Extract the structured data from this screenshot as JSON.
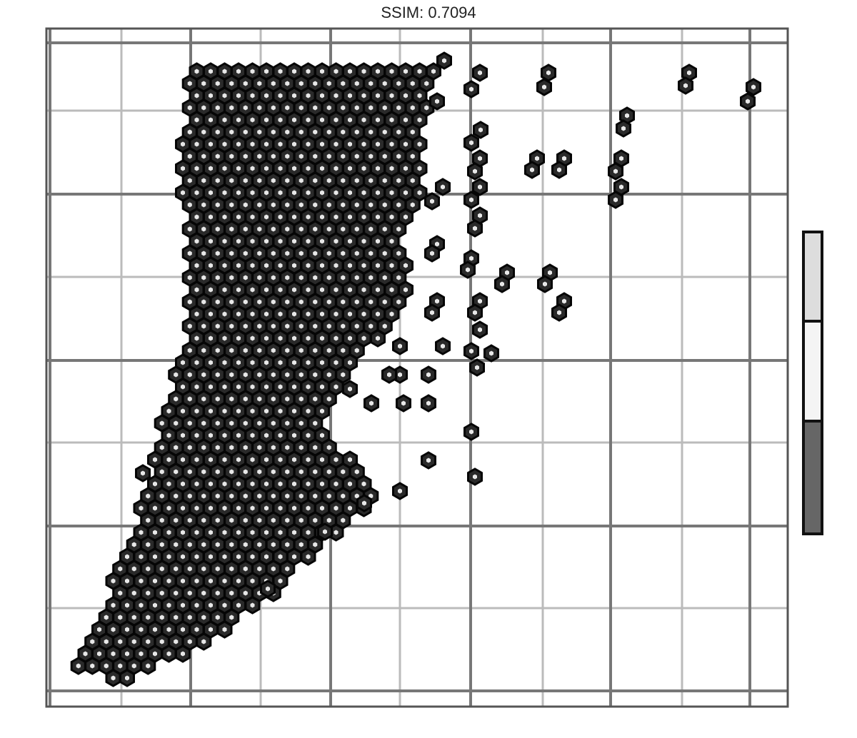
{
  "chart_data": {
    "type": "hexbin",
    "title": "SSIM: 0.7094"
  }
}
